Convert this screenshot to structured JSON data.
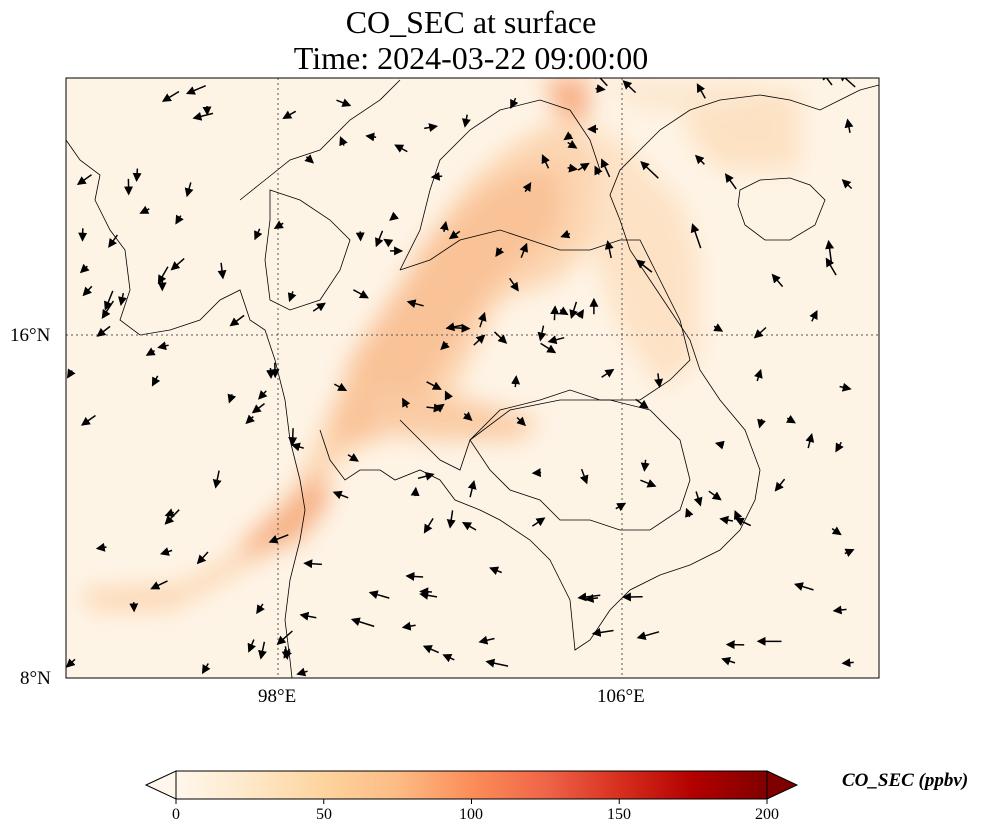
{
  "title": {
    "line1": "CO_SEC at surface",
    "line2": "Time: 2024-03-22 09:00:00"
  },
  "map": {
    "projection": "PlateCarree",
    "lon_range": [
      93.0,
      112.0
    ],
    "lat_range": [
      8.0,
      22.0
    ],
    "gridlines": "dotted",
    "lon_ticks": [
      {
        "value": 98,
        "label": "98°E"
      },
      {
        "value": 106,
        "label": "106°E"
      }
    ],
    "lat_ticks": [
      {
        "value": 16,
        "label": "16°N"
      },
      {
        "value": 8,
        "label": "8°N"
      }
    ],
    "field_name": "CO_SEC",
    "field_units": "ppbv",
    "wind_vectors": "surface wind arrows"
  },
  "colorbar": {
    "label": "CO_SEC (ppbv)",
    "colormap": "OrRd",
    "range": [
      0,
      200
    ],
    "extend": "both",
    "ticks": [
      {
        "value": 0,
        "label": "0"
      },
      {
        "value": 50,
        "label": "50"
      },
      {
        "value": 100,
        "label": "100"
      },
      {
        "value": 150,
        "label": "150"
      },
      {
        "value": 200,
        "label": "200"
      }
    ],
    "colors": [
      "#fff7ec",
      "#fee8c8",
      "#fdd49e",
      "#fdbb84",
      "#fc8d59",
      "#ef6548",
      "#d7301f",
      "#b30000",
      "#7f0000"
    ]
  }
}
